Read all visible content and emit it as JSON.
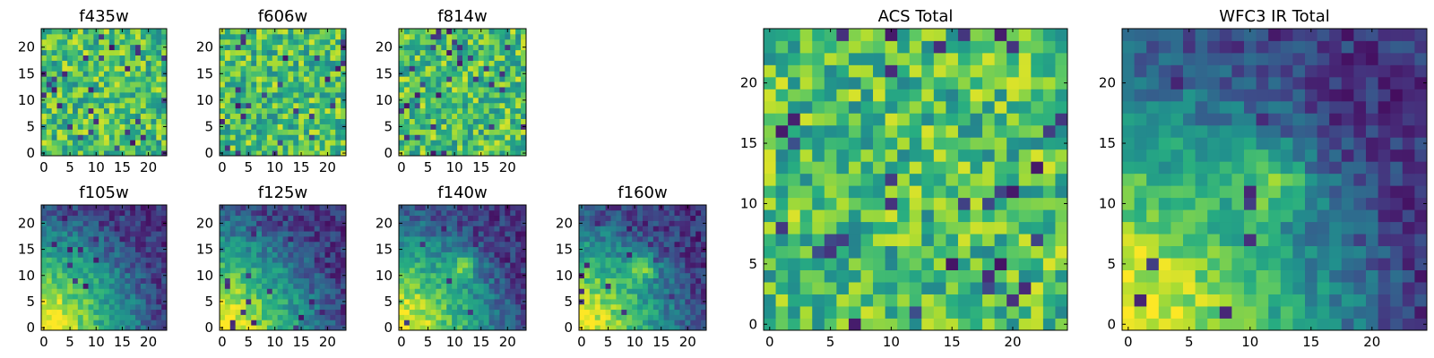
{
  "colors": {
    "colormap": "viridis",
    "background": "#ffffff",
    "frame": "#000000"
  },
  "chart_data": [
    {
      "type": "heatmap",
      "title": "f435w",
      "grid_size": [
        24,
        24
      ],
      "xlim": [
        0,
        24
      ],
      "ylim": [
        0,
        24
      ],
      "xticks": [
        0,
        5,
        10,
        15,
        20
      ],
      "yticks": [
        0,
        5,
        10,
        15,
        20
      ],
      "grid": false,
      "colormap": "viridis",
      "pattern": "uniform-noise",
      "description_values": "pixel intensities not labeled"
    },
    {
      "type": "heatmap",
      "title": "f606w",
      "grid_size": [
        24,
        24
      ],
      "xlim": [
        0,
        24
      ],
      "ylim": [
        0,
        24
      ],
      "xticks": [
        0,
        5,
        10,
        15,
        20
      ],
      "yticks": [
        0,
        5,
        10,
        15,
        20
      ],
      "grid": false,
      "colormap": "viridis",
      "pattern": "uniform-noise"
    },
    {
      "type": "heatmap",
      "title": "f814w",
      "grid_size": [
        24,
        24
      ],
      "xlim": [
        0,
        24
      ],
      "ylim": [
        0,
        24
      ],
      "xticks": [
        0,
        5,
        10,
        15,
        20
      ],
      "yticks": [
        0,
        5,
        10,
        15,
        20
      ],
      "grid": false,
      "colormap": "viridis",
      "pattern": "uniform-noise"
    },
    {
      "type": "heatmap",
      "title": "f105w",
      "grid_size": [
        24,
        24
      ],
      "xlim": [
        0,
        24
      ],
      "ylim": [
        0,
        24
      ],
      "xticks": [
        0,
        5,
        10,
        15,
        20
      ],
      "yticks": [
        0,
        5,
        10,
        15,
        20
      ],
      "grid": false,
      "colormap": "viridis",
      "pattern": "bright-lower-left-smooth"
    },
    {
      "type": "heatmap",
      "title": "f125w",
      "grid_size": [
        24,
        24
      ],
      "xlim": [
        0,
        24
      ],
      "ylim": [
        0,
        24
      ],
      "xticks": [
        0,
        5,
        10,
        15,
        20
      ],
      "yticks": [
        0,
        5,
        10,
        15,
        20
      ],
      "grid": false,
      "colormap": "viridis",
      "pattern": "bright-lower-left-smooth"
    },
    {
      "type": "heatmap",
      "title": "f140w",
      "grid_size": [
        24,
        24
      ],
      "xlim": [
        0,
        24
      ],
      "ylim": [
        0,
        24
      ],
      "xticks": [
        0,
        5,
        10,
        15,
        20
      ],
      "yticks": [
        0,
        5,
        10,
        15,
        20
      ],
      "grid": false,
      "colormap": "viridis",
      "pattern": "bright-lower-left-with-central-source"
    },
    {
      "type": "heatmap",
      "title": "f160w",
      "grid_size": [
        24,
        24
      ],
      "xlim": [
        0,
        24
      ],
      "ylim": [
        0,
        24
      ],
      "xticks": [
        0,
        5,
        10,
        15,
        20
      ],
      "yticks": [
        0,
        5,
        10,
        15,
        20
      ],
      "grid": false,
      "colormap": "viridis",
      "pattern": "bright-lower-left-with-central-source"
    },
    {
      "type": "heatmap",
      "title": "ACS Total",
      "grid_size": [
        25,
        25
      ],
      "xlim": [
        0,
        25
      ],
      "ylim": [
        0,
        25
      ],
      "xticks": [
        0,
        5,
        10,
        15,
        20
      ],
      "yticks": [
        0,
        5,
        10,
        15,
        20
      ],
      "grid": false,
      "colormap": "viridis",
      "pattern": "uniform-noise"
    },
    {
      "type": "heatmap",
      "title": "WFC3 IR Total",
      "grid_size": [
        25,
        25
      ],
      "xlim": [
        0,
        25
      ],
      "ylim": [
        0,
        25
      ],
      "xticks": [
        0,
        5,
        10,
        15,
        20
      ],
      "yticks": [
        0,
        5,
        10,
        15,
        20
      ],
      "grid": false,
      "colormap": "viridis",
      "pattern": "bright-lower-left-with-central-source"
    }
  ]
}
